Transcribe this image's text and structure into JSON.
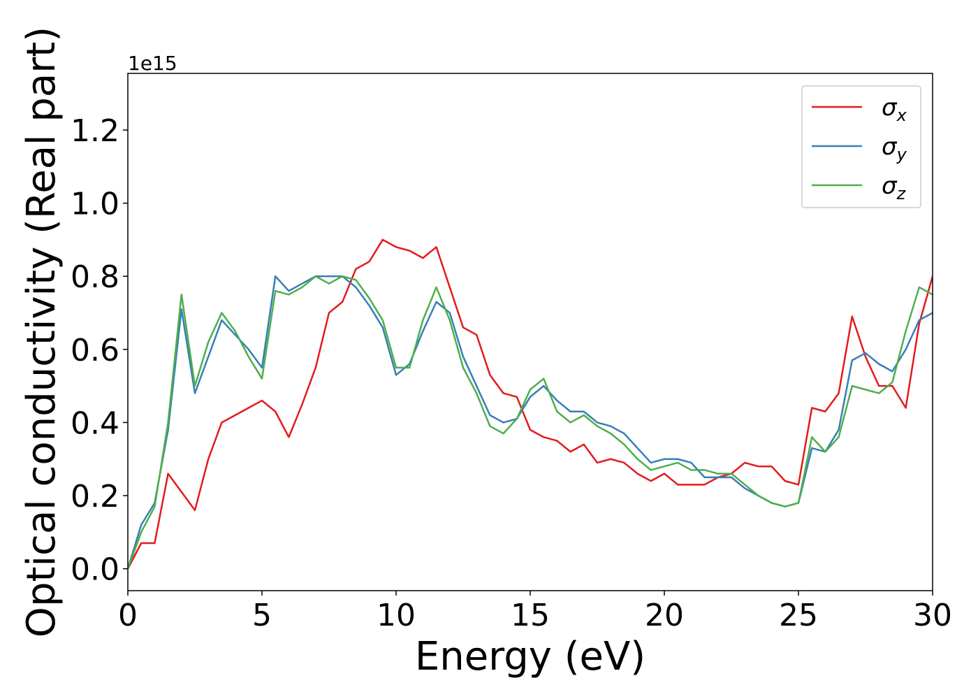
{
  "chart_data": {
    "type": "line",
    "xlabel": "Energy (eV)",
    "ylabel": "Optical conductivity (Real part)",
    "offset_label": "1e15",
    "x": [
      0,
      0.5,
      1,
      1.5,
      2,
      2.5,
      3,
      3.5,
      4,
      4.5,
      5,
      5.5,
      6,
      6.5,
      7,
      7.5,
      8,
      8.5,
      9,
      9.5,
      10,
      10.5,
      11,
      11.5,
      12,
      12.5,
      13,
      13.5,
      14,
      14.5,
      15,
      15.5,
      16,
      16.5,
      17,
      17.5,
      18,
      18.5,
      19,
      19.5,
      20,
      20.5,
      21,
      21.5,
      22,
      22.5,
      23,
      23.5,
      24,
      24.5,
      25,
      25.5,
      26,
      26.5,
      27,
      27.5,
      28,
      28.5,
      29,
      29.5,
      30
    ],
    "series": [
      {
        "name": "σx",
        "color": "#e41a1c",
        "values": [
          0,
          0.07,
          0.07,
          0.26,
          0.21,
          0.16,
          0.3,
          0.4,
          0.42,
          0.44,
          0.46,
          0.43,
          0.36,
          0.45,
          0.55,
          0.7,
          0.73,
          0.82,
          0.84,
          0.9,
          0.88,
          0.87,
          0.85,
          0.88,
          0.77,
          0.66,
          0.64,
          0.53,
          0.48,
          0.47,
          0.38,
          0.36,
          0.35,
          0.32,
          0.34,
          0.29,
          0.3,
          0.29,
          0.26,
          0.24,
          0.26,
          0.23,
          0.23,
          0.23,
          0.25,
          0.26,
          0.29,
          0.28,
          0.28,
          0.24,
          0.23,
          0.44,
          0.43,
          0.48,
          0.69,
          0.58,
          0.5,
          0.5,
          0.44,
          0.67,
          0.8
        ]
      },
      {
        "name": "σy",
        "color": "#377eb8",
        "values": [
          0,
          0.12,
          0.18,
          0.38,
          0.71,
          0.48,
          0.58,
          0.68,
          0.64,
          0.6,
          0.55,
          0.8,
          0.76,
          0.78,
          0.8,
          0.8,
          0.8,
          0.77,
          0.72,
          0.66,
          0.53,
          0.56,
          0.65,
          0.73,
          0.7,
          0.58,
          0.5,
          0.42,
          0.4,
          0.41,
          0.47,
          0.5,
          0.46,
          0.43,
          0.43,
          0.4,
          0.39,
          0.37,
          0.33,
          0.29,
          0.3,
          0.3,
          0.29,
          0.25,
          0.25,
          0.25,
          0.22,
          0.2,
          0.18,
          0.17,
          0.18,
          0.33,
          0.32,
          0.38,
          0.57,
          0.59,
          0.56,
          0.54,
          0.6,
          0.68,
          0.7
        ]
      },
      {
        "name": "σz",
        "color": "#4daf4a",
        "values": [
          0,
          0.1,
          0.17,
          0.4,
          0.75,
          0.5,
          0.62,
          0.7,
          0.65,
          0.58,
          0.52,
          0.76,
          0.75,
          0.77,
          0.8,
          0.78,
          0.8,
          0.79,
          0.74,
          0.68,
          0.55,
          0.55,
          0.68,
          0.77,
          0.68,
          0.55,
          0.48,
          0.39,
          0.37,
          0.41,
          0.49,
          0.52,
          0.43,
          0.4,
          0.42,
          0.39,
          0.37,
          0.34,
          0.3,
          0.27,
          0.28,
          0.29,
          0.27,
          0.27,
          0.26,
          0.26,
          0.23,
          0.2,
          0.18,
          0.17,
          0.18,
          0.36,
          0.32,
          0.36,
          0.5,
          0.49,
          0.48,
          0.51,
          0.65,
          0.77,
          0.75
        ]
      }
    ],
    "xlim": [
      0,
      30
    ],
    "xticks": [
      0,
      5,
      10,
      15,
      20,
      25,
      30
    ],
    "ylim": [
      -0.06,
      1.355
    ],
    "yticks": [
      {
        "value": 0,
        "label": "0.0"
      },
      {
        "value": 0.2,
        "label": "0.2"
      },
      {
        "value": 0.4,
        "label": "0.4"
      },
      {
        "value": 0.6,
        "label": "0.6"
      },
      {
        "value": 0.8,
        "label": "0.8"
      },
      {
        "value": 1.0,
        "label": "1.0"
      },
      {
        "value": 1.2,
        "label": "1.2"
      }
    ],
    "legend": "upper right",
    "grid": false
  }
}
